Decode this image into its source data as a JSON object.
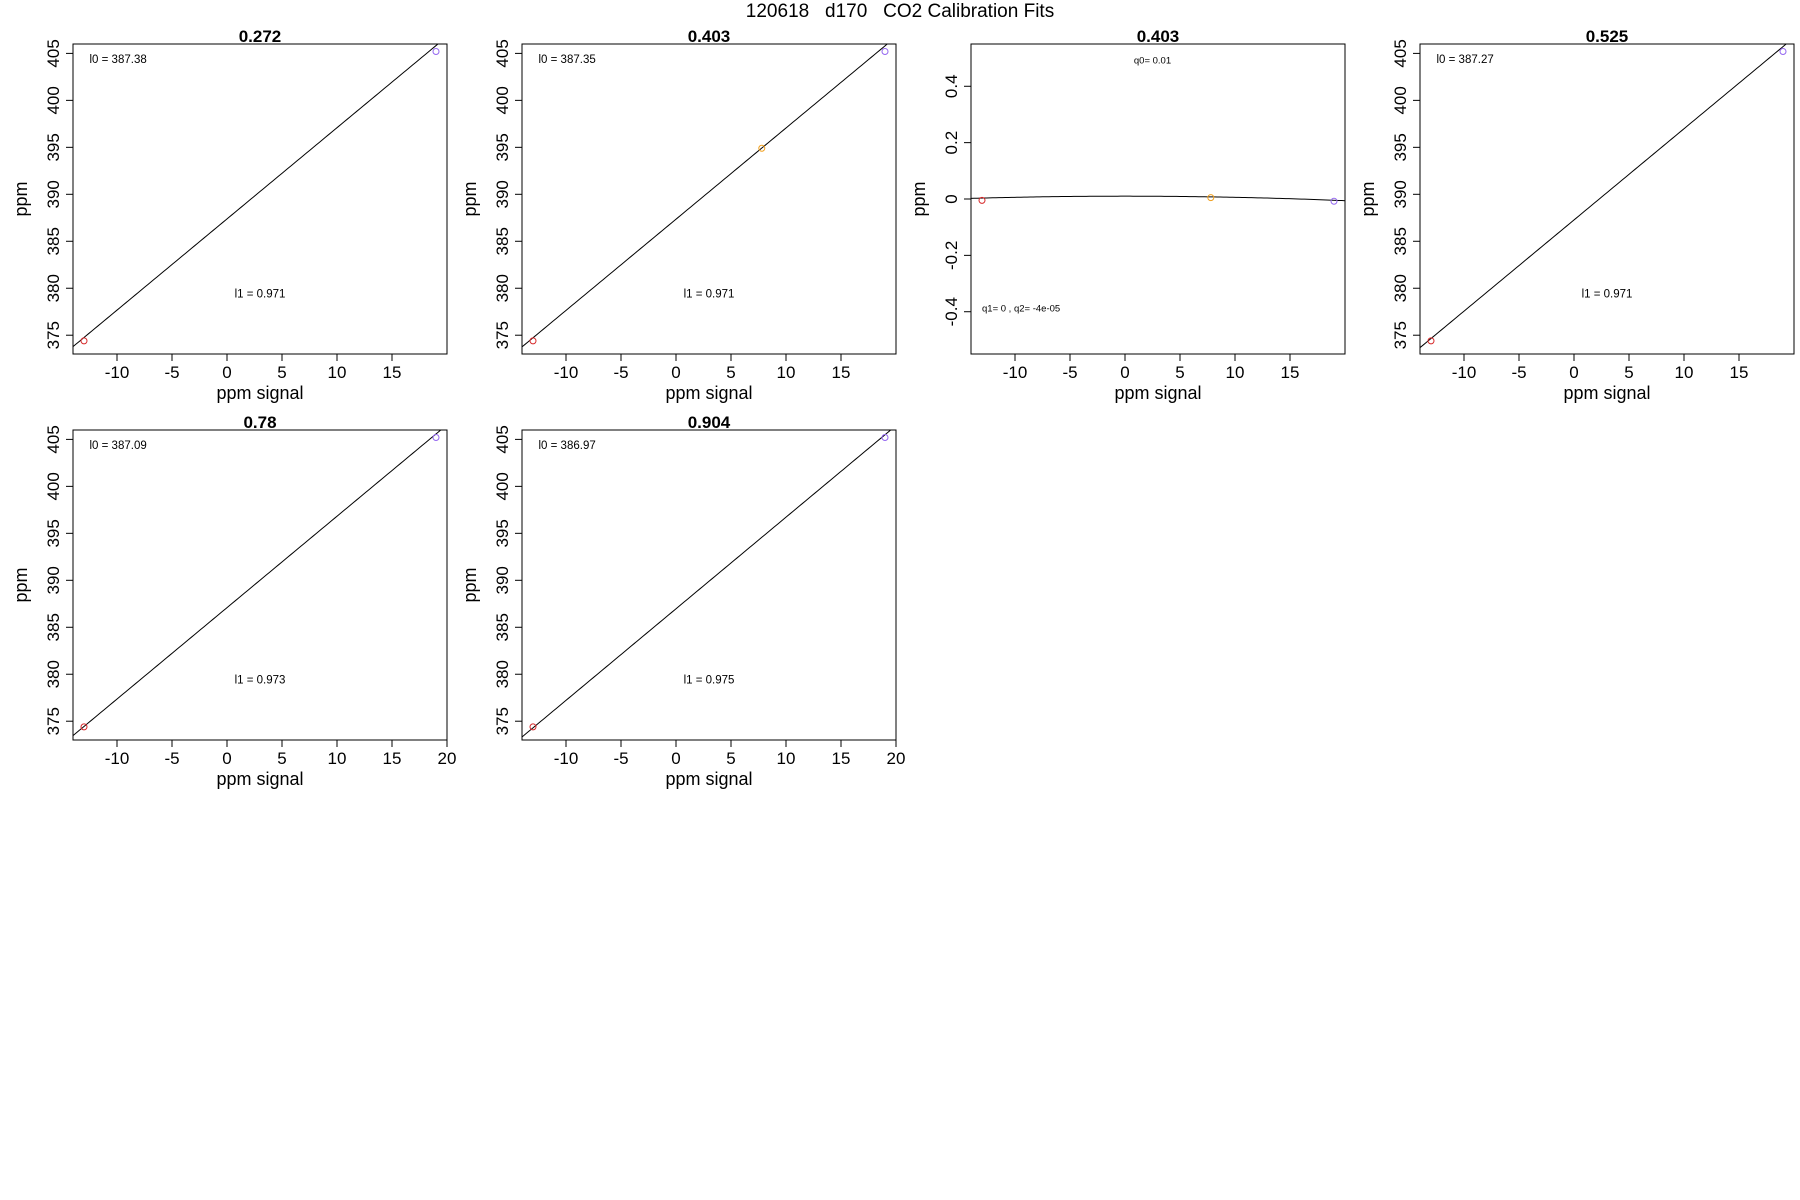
{
  "title": "120618   d170   CO2 Calibration Fits",
  "chart_data": [
    {
      "type": "scatter",
      "title": "0.272",
      "xlabel": "ppm signal",
      "ylabel": "ppm",
      "xlim": [
        -14,
        20
      ],
      "ylim": [
        373,
        406
      ],
      "xticks": [
        -10,
        -5,
        0,
        5,
        10,
        15
      ],
      "yticks": [
        375,
        380,
        385,
        390,
        395,
        400,
        405
      ],
      "grid": false,
      "points": [
        {
          "x": -13.0,
          "y": 374.4,
          "color": "#d62728"
        },
        {
          "x": 19.0,
          "y": 405.2,
          "color": "#9467f0"
        }
      ],
      "fit": {
        "kind": "linear",
        "l0": 387.38,
        "l1": 0.971
      },
      "annotations": [
        {
          "text": "l0 =  387.38",
          "x": -12.5,
          "y": 404.0,
          "anchor": "start"
        },
        {
          "text": "l1 =  0.971",
          "x": 3.0,
          "y": 379.0,
          "anchor": "middle"
        }
      ]
    },
    {
      "type": "scatter",
      "title": "0.403",
      "xlabel": "ppm signal",
      "ylabel": "ppm",
      "xlim": [
        -14,
        20
      ],
      "ylim": [
        373,
        406
      ],
      "xticks": [
        -10,
        -5,
        0,
        5,
        10,
        15
      ],
      "yticks": [
        375,
        380,
        385,
        390,
        395,
        400,
        405
      ],
      "grid": false,
      "points": [
        {
          "x": -13.0,
          "y": 374.4,
          "color": "#d62728"
        },
        {
          "x": 7.8,
          "y": 394.9,
          "color": "#f0a020"
        },
        {
          "x": 19.0,
          "y": 405.2,
          "color": "#9467f0"
        }
      ],
      "fit": {
        "kind": "linear",
        "l0": 387.35,
        "l1": 0.971
      },
      "annotations": [
        {
          "text": "l0 =  387.35",
          "x": -12.5,
          "y": 404.0,
          "anchor": "start"
        },
        {
          "text": "l1 =  0.971",
          "x": 3.0,
          "y": 379.0,
          "anchor": "middle"
        }
      ]
    },
    {
      "type": "scatter",
      "title": "0.403",
      "xlabel": "ppm signal",
      "ylabel": "ppm",
      "xlim": [
        -14,
        20
      ],
      "ylim": [
        -0.55,
        0.55
      ],
      "xticks": [
        -10,
        -5,
        0,
        5,
        10,
        15
      ],
      "yticks": [
        -0.4,
        -0.2,
        0.0,
        0.2,
        0.4
      ],
      "grid": false,
      "points": [
        {
          "x": -13.0,
          "y": -0.005,
          "color": "#d62728"
        },
        {
          "x": 7.8,
          "y": 0.005,
          "color": "#f0a020"
        },
        {
          "x": 19.0,
          "y": -0.008,
          "color": "#9467f0"
        }
      ],
      "fit": {
        "kind": "quadratic",
        "q0": 0.01,
        "q1": 0,
        "q2": -4e-05
      },
      "annotations": [
        {
          "text": "q0= 0.01",
          "x": 2.5,
          "y": 0.48,
          "anchor": "middle",
          "small": true
        },
        {
          "text": "q1= 0 , q2= -4e-05",
          "x": -13.0,
          "y": -0.4,
          "anchor": "start",
          "small": true
        }
      ]
    },
    {
      "type": "scatter",
      "title": "0.525",
      "xlabel": "ppm signal",
      "ylabel": "ppm",
      "xlim": [
        -14,
        20
      ],
      "ylim": [
        373,
        406
      ],
      "xticks": [
        -10,
        -5,
        0,
        5,
        10,
        15
      ],
      "yticks": [
        375,
        380,
        385,
        390,
        395,
        400,
        405
      ],
      "grid": false,
      "points": [
        {
          "x": -13.0,
          "y": 374.4,
          "color": "#d62728"
        },
        {
          "x": 19.0,
          "y": 405.2,
          "color": "#9467f0"
        }
      ],
      "fit": {
        "kind": "linear",
        "l0": 387.27,
        "l1": 0.971
      },
      "annotations": [
        {
          "text": "l0 =  387.27",
          "x": -12.5,
          "y": 404.0,
          "anchor": "start"
        },
        {
          "text": "l1 =  0.971",
          "x": 3.0,
          "y": 379.0,
          "anchor": "middle"
        }
      ]
    },
    {
      "type": "scatter",
      "title": "0.78",
      "xlabel": "ppm signal",
      "ylabel": "ppm",
      "xlim": [
        -14,
        20
      ],
      "ylim": [
        373,
        406
      ],
      "xticks": [
        -10,
        -5,
        0,
        5,
        10,
        15,
        20
      ],
      "yticks": [
        375,
        380,
        385,
        390,
        395,
        400,
        405
      ],
      "grid": false,
      "points": [
        {
          "x": -13.0,
          "y": 374.4,
          "color": "#d62728"
        },
        {
          "x": 19.0,
          "y": 405.2,
          "color": "#9467f0"
        }
      ],
      "fit": {
        "kind": "linear",
        "l0": 387.09,
        "l1": 0.973
      },
      "annotations": [
        {
          "text": "l0 =  387.09",
          "x": -12.5,
          "y": 404.0,
          "anchor": "start"
        },
        {
          "text": "l1 =  0.973",
          "x": 3.0,
          "y": 379.0,
          "anchor": "middle"
        }
      ]
    },
    {
      "type": "scatter",
      "title": "0.904",
      "xlabel": "ppm signal",
      "ylabel": "ppm",
      "xlim": [
        -14,
        20
      ],
      "ylim": [
        373,
        406
      ],
      "xticks": [
        -10,
        -5,
        0,
        5,
        10,
        15,
        20
      ],
      "yticks": [
        375,
        380,
        385,
        390,
        395,
        400,
        405
      ],
      "grid": false,
      "points": [
        {
          "x": -13.0,
          "y": 374.4,
          "color": "#d62728"
        },
        {
          "x": 19.0,
          "y": 405.2,
          "color": "#9467f0"
        }
      ],
      "fit": {
        "kind": "linear",
        "l0": 386.97,
        "l1": 0.975
      },
      "annotations": [
        {
          "text": "l0 =  386.97",
          "x": -12.5,
          "y": 404.0,
          "anchor": "start"
        },
        {
          "text": "l1 =  0.975",
          "x": 3.0,
          "y": 379.0,
          "anchor": "middle"
        }
      ]
    }
  ]
}
